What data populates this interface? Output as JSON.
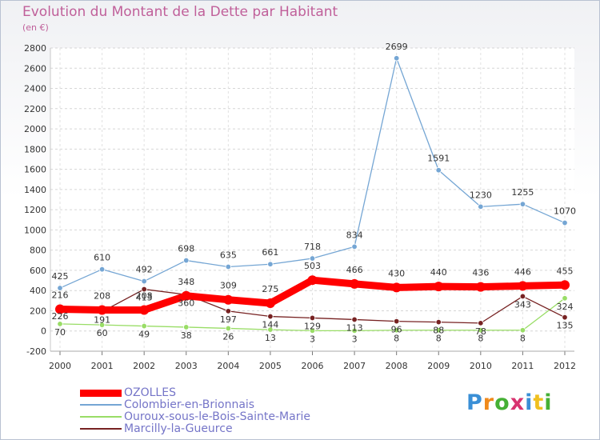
{
  "header": {
    "title": "Evolution du Montant de la Dette par Habitant",
    "unit": "(en €)"
  },
  "logo": {
    "text": "Proxiti"
  },
  "chart_data": {
    "type": "line",
    "title": "Evolution du Montant de la Dette par Habitant",
    "ylabel": "(en €)",
    "xlabel": "",
    "x": [
      "2000",
      "2001",
      "2002",
      "2003",
      "2004",
      "2005",
      "2006",
      "2007",
      "2008",
      "2009",
      "2010",
      "2011",
      "2012"
    ],
    "ylim": [
      -200,
      2800
    ],
    "yticks": [
      -200,
      0,
      200,
      400,
      600,
      800,
      1000,
      1200,
      1400,
      1600,
      1800,
      2000,
      2200,
      2400,
      2600,
      2800
    ],
    "grid": true,
    "legend_position": "bottom-left",
    "series": [
      {
        "name": "OZOLLES",
        "color": "#ff0000",
        "emphasis": true,
        "values": [
          216,
          208,
          208,
          348,
          309,
          275,
          503,
          466,
          430,
          440,
          436,
          446,
          455
        ]
      },
      {
        "name": "Colombier-en-Brionnais",
        "color": "#75a6d4",
        "values": [
          425,
          610,
          492,
          698,
          635,
          661,
          718,
          834,
          2699,
          1591,
          1230,
          1255,
          1070
        ]
      },
      {
        "name": "Ouroux-sous-le-Bois-Sainte-Marie",
        "color": "#99dd66",
        "values": [
          70,
          60,
          49,
          38,
          26,
          13,
          3,
          3,
          8,
          8,
          8,
          8,
          324
        ]
      },
      {
        "name": "Marcilly-la-Gueurce",
        "color": "#772222",
        "values": [
          226,
          191,
          413,
          360,
          197,
          144,
          129,
          113,
          96,
          88,
          78,
          343,
          135
        ]
      }
    ]
  }
}
